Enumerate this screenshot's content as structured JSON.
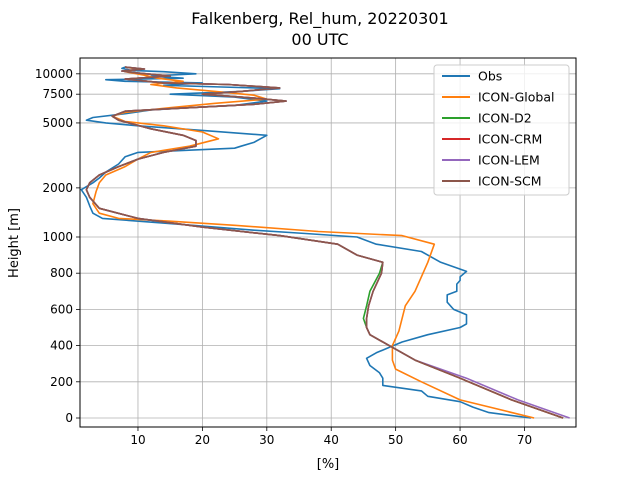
{
  "chart_data": {
    "type": "line",
    "title": "Falkenberg, Rel_hum, 20220301",
    "subtitle": "00 UTC",
    "xlabel": "[%]",
    "ylabel": "Height [m]",
    "xlim": [
      1,
      78
    ],
    "xticks": [
      10,
      20,
      30,
      40,
      50,
      60,
      70
    ],
    "grid": true,
    "legend_position": "top-right",
    "yticks": [
      {
        "value": 0,
        "label": "0"
      },
      {
        "value": 200,
        "label": "200"
      },
      {
        "value": 400,
        "label": "400"
      },
      {
        "value": 600,
        "label": "600"
      },
      {
        "value": 800,
        "label": "800"
      },
      {
        "value": 1000,
        "label": "1000"
      },
      {
        "value": 2000,
        "label": "2000"
      },
      {
        "value": 5000,
        "label": "5000"
      },
      {
        "value": 7500,
        "label": "7500"
      },
      {
        "value": 10000,
        "label": "10000"
      }
    ],
    "series": [
      {
        "name": "Obs",
        "color": "#1f77b4",
        "points": [
          [
            71,
            0
          ],
          [
            64.5,
            30
          ],
          [
            62,
            60
          ],
          [
            60,
            90
          ],
          [
            55,
            120
          ],
          [
            54,
            150
          ],
          [
            48,
            180
          ],
          [
            48,
            220
          ],
          [
            47.5,
            250
          ],
          [
            46,
            290
          ],
          [
            45.5,
            330
          ],
          [
            47,
            360
          ],
          [
            49,
            390
          ],
          [
            51,
            420
          ],
          [
            55,
            460
          ],
          [
            60,
            500
          ],
          [
            61,
            520
          ],
          [
            61,
            570
          ],
          [
            59,
            600
          ],
          [
            58,
            640
          ],
          [
            58,
            680
          ],
          [
            59.5,
            700
          ],
          [
            59.5,
            740
          ],
          [
            60,
            760
          ],
          [
            60,
            780
          ],
          [
            61,
            810
          ],
          [
            57,
            860
          ],
          [
            54,
            920
          ],
          [
            47,
            960
          ],
          [
            44,
            1000
          ],
          [
            36,
            1050
          ],
          [
            28,
            1100
          ],
          [
            16,
            1200
          ],
          [
            4.5,
            1300
          ],
          [
            3,
            1400
          ],
          [
            2.5,
            1550
          ],
          [
            2,
            1750
          ],
          [
            1.2,
            1950
          ],
          [
            3,
            2150
          ],
          [
            4,
            2300
          ],
          [
            5,
            2500
          ],
          [
            7,
            2800
          ],
          [
            8,
            3100
          ],
          [
            10,
            3300
          ],
          [
            25,
            3500
          ],
          [
            26,
            3600
          ],
          [
            28,
            3800
          ],
          [
            29,
            4000
          ],
          [
            30,
            4200
          ],
          [
            20,
            4500
          ],
          [
            10,
            4800
          ],
          [
            5,
            5000
          ],
          [
            2,
            5200
          ],
          [
            3,
            5400
          ],
          [
            8,
            5700
          ],
          [
            12,
            6000
          ],
          [
            18,
            6200
          ],
          [
            25,
            6400
          ],
          [
            30,
            6800
          ],
          [
            25,
            7200
          ],
          [
            15,
            7500
          ],
          [
            26,
            7800
          ],
          [
            32,
            8100
          ],
          [
            23,
            8300
          ],
          [
            14,
            8500
          ],
          [
            20,
            8800
          ],
          [
            8,
            9000
          ],
          [
            5,
            9200
          ],
          [
            17,
            9400
          ],
          [
            12,
            9700
          ],
          [
            19,
            10000
          ],
          [
            14,
            10300
          ],
          [
            9,
            10500
          ],
          [
            7.5,
            10800
          ],
          [
            8,
            11000
          ]
        ]
      },
      {
        "name": "ICON-Global",
        "color": "#ff7f0e",
        "points": [
          [
            71.5,
            0
          ],
          [
            60,
            100
          ],
          [
            54,
            200
          ],
          [
            50,
            270
          ],
          [
            49.5,
            320
          ],
          [
            49.5,
            400
          ],
          [
            50.5,
            480
          ],
          [
            51.5,
            620
          ],
          [
            53,
            700
          ],
          [
            55,
            860
          ],
          [
            56,
            960
          ],
          [
            51,
            1020
          ],
          [
            38,
            1080
          ],
          [
            25,
            1180
          ],
          [
            15,
            1250
          ],
          [
            7,
            1300
          ],
          [
            4,
            1400
          ],
          [
            3,
            1600
          ],
          [
            3.5,
            1900
          ],
          [
            4,
            2150
          ],
          [
            5,
            2400
          ],
          [
            8,
            2700
          ],
          [
            10,
            3000
          ],
          [
            12,
            3300
          ],
          [
            18,
            3600
          ],
          [
            22.5,
            4000
          ],
          [
            20,
            4400
          ],
          [
            14,
            4800
          ],
          [
            8,
            5100
          ],
          [
            6,
            5500
          ],
          [
            8,
            5800
          ],
          [
            15,
            6200
          ],
          [
            22,
            6600
          ],
          [
            30,
            7000
          ],
          [
            28,
            7400
          ],
          [
            22,
            7800
          ],
          [
            16,
            8200
          ],
          [
            12,
            8600
          ],
          [
            17,
            9000
          ],
          [
            13,
            9400
          ],
          [
            11,
            9800
          ],
          [
            8,
            10300
          ],
          [
            10,
            10700
          ],
          [
            8,
            11000
          ]
        ]
      },
      {
        "name": "ICON-D2",
        "color": "#2ca02c",
        "points": [
          [
            76,
            0
          ],
          [
            68,
            100
          ],
          [
            60,
            220
          ],
          [
            53,
            320
          ],
          [
            49,
            400
          ],
          [
            46,
            460
          ],
          [
            45.5,
            500
          ],
          [
            45,
            550
          ],
          [
            45.5,
            620
          ],
          [
            46,
            700
          ],
          [
            47.5,
            800
          ],
          [
            48,
            860
          ],
          [
            44,
            900
          ],
          [
            41,
            960
          ],
          [
            32,
            1020
          ],
          [
            20,
            1150
          ],
          [
            10,
            1300
          ],
          [
            4,
            1500
          ],
          [
            2.5,
            1750
          ],
          [
            2,
            1950
          ],
          [
            2.5,
            2150
          ],
          [
            4,
            2400
          ],
          [
            7,
            2700
          ],
          [
            10,
            3000
          ],
          [
            14,
            3300
          ],
          [
            19,
            3600
          ],
          [
            19,
            3900
          ],
          [
            17,
            4200
          ],
          [
            12,
            4600
          ],
          [
            7,
            5200
          ],
          [
            6,
            5500
          ],
          [
            8,
            5900
          ],
          [
            18,
            6200
          ],
          [
            28,
            6500
          ],
          [
            33,
            6800
          ],
          [
            28,
            7100
          ],
          [
            20,
            7500
          ],
          [
            26,
            7800
          ],
          [
            32,
            8200
          ],
          [
            24,
            8600
          ],
          [
            14,
            8800
          ],
          [
            8,
            9300
          ],
          [
            15,
            9700
          ],
          [
            10,
            10100
          ],
          [
            7.5,
            10400
          ],
          [
            11,
            10700
          ],
          [
            8,
            11000
          ]
        ]
      },
      {
        "name": "ICON-CRM",
        "color": "#d62728",
        "points": [
          [
            76,
            0
          ],
          [
            68,
            100
          ],
          [
            60,
            220
          ],
          [
            53,
            320
          ],
          [
            49,
            400
          ],
          [
            46,
            460
          ],
          [
            45.5,
            500
          ],
          [
            45.5,
            550
          ],
          [
            45.8,
            620
          ],
          [
            46.5,
            700
          ],
          [
            47.8,
            800
          ],
          [
            48,
            860
          ],
          [
            44,
            900
          ],
          [
            41,
            960
          ],
          [
            32,
            1020
          ],
          [
            20,
            1150
          ],
          [
            10,
            1300
          ],
          [
            4,
            1500
          ],
          [
            2.5,
            1750
          ],
          [
            2,
            1950
          ],
          [
            2.5,
            2150
          ],
          [
            4,
            2400
          ],
          [
            7,
            2700
          ],
          [
            10,
            3000
          ],
          [
            14,
            3300
          ],
          [
            19,
            3600
          ],
          [
            19,
            3900
          ],
          [
            17,
            4200
          ],
          [
            12,
            4600
          ],
          [
            7,
            5200
          ],
          [
            6,
            5500
          ],
          [
            8,
            5900
          ],
          [
            18,
            6200
          ],
          [
            28,
            6500
          ],
          [
            33,
            6800
          ],
          [
            28,
            7100
          ],
          [
            20,
            7500
          ],
          [
            26,
            7800
          ],
          [
            32,
            8200
          ],
          [
            24,
            8600
          ],
          [
            14,
            8800
          ],
          [
            8,
            9300
          ],
          [
            15,
            9700
          ],
          [
            10,
            10100
          ],
          [
            7.5,
            10400
          ],
          [
            11,
            10700
          ],
          [
            8,
            11000
          ]
        ]
      },
      {
        "name": "ICON-LEM",
        "color": "#9467bd",
        "points": [
          [
            77,
            0
          ],
          [
            69,
            100
          ],
          [
            61,
            220
          ],
          [
            53,
            320
          ],
          [
            49,
            400
          ],
          [
            46,
            460
          ],
          [
            45.5,
            500
          ],
          [
            45.5,
            550
          ],
          [
            45.8,
            620
          ],
          [
            46.5,
            700
          ],
          [
            47.8,
            800
          ],
          [
            48,
            860
          ],
          [
            44,
            900
          ],
          [
            41,
            960
          ],
          [
            32,
            1020
          ],
          [
            20,
            1150
          ],
          [
            10,
            1300
          ],
          [
            4,
            1500
          ],
          [
            2.5,
            1750
          ],
          [
            2,
            1950
          ],
          [
            2.5,
            2150
          ],
          [
            4,
            2400
          ],
          [
            7,
            2700
          ],
          [
            10,
            3000
          ],
          [
            14,
            3300
          ],
          [
            19,
            3600
          ],
          [
            19,
            3900
          ],
          [
            17,
            4200
          ],
          [
            12,
            4600
          ],
          [
            7,
            5200
          ],
          [
            6,
            5500
          ],
          [
            8,
            5900
          ],
          [
            18,
            6200
          ],
          [
            28,
            6500
          ],
          [
            33,
            6800
          ],
          [
            28,
            7100
          ],
          [
            20,
            7500
          ],
          [
            26,
            7800
          ],
          [
            32,
            8200
          ],
          [
            24,
            8600
          ],
          [
            14,
            8800
          ],
          [
            8,
            9300
          ],
          [
            15,
            9700
          ],
          [
            10,
            10100
          ],
          [
            7.5,
            10400
          ],
          [
            11,
            10700
          ],
          [
            8,
            11000
          ]
        ]
      },
      {
        "name": "ICON-SCM",
        "color": "#8c564b",
        "points": [
          [
            76,
            0
          ],
          [
            68,
            100
          ],
          [
            60,
            220
          ],
          [
            53,
            320
          ],
          [
            49,
            400
          ],
          [
            46,
            460
          ],
          [
            45.5,
            500
          ],
          [
            45.5,
            550
          ],
          [
            45.8,
            620
          ],
          [
            46.5,
            700
          ],
          [
            47.8,
            800
          ],
          [
            48,
            860
          ],
          [
            44,
            900
          ],
          [
            41,
            960
          ],
          [
            32,
            1020
          ],
          [
            20,
            1150
          ],
          [
            10,
            1300
          ],
          [
            4,
            1500
          ],
          [
            2.5,
            1750
          ],
          [
            2,
            1950
          ],
          [
            2.5,
            2150
          ],
          [
            4,
            2400
          ],
          [
            7,
            2700
          ],
          [
            10,
            3000
          ],
          [
            14,
            3300
          ],
          [
            19,
            3600
          ],
          [
            19,
            3900
          ],
          [
            17,
            4200
          ],
          [
            12,
            4600
          ],
          [
            7,
            5200
          ],
          [
            6,
            5500
          ],
          [
            8,
            5900
          ],
          [
            18,
            6200
          ],
          [
            28,
            6500
          ],
          [
            33,
            6800
          ],
          [
            28,
            7100
          ],
          [
            20,
            7500
          ],
          [
            26,
            7800
          ],
          [
            32,
            8200
          ],
          [
            24,
            8600
          ],
          [
            14,
            8800
          ],
          [
            8,
            9300
          ],
          [
            15,
            9700
          ],
          [
            10,
            10100
          ],
          [
            7.5,
            10400
          ],
          [
            11,
            10700
          ],
          [
            8,
            11000
          ]
        ]
      }
    ]
  }
}
